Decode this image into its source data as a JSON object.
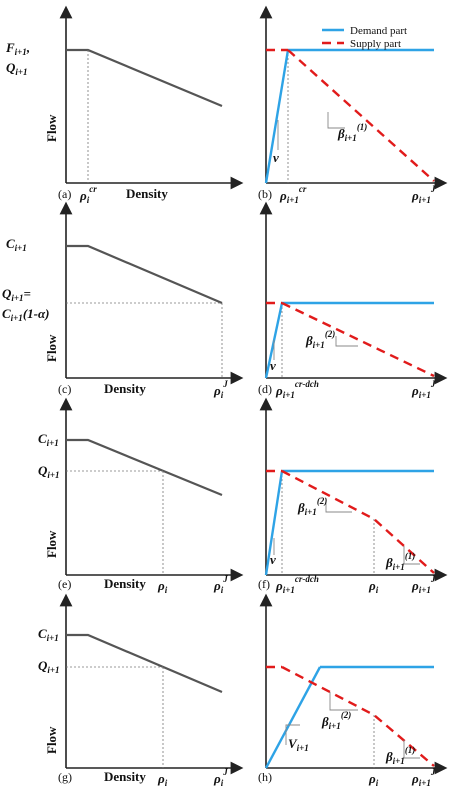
{
  "labels": {
    "flow": "Flow",
    "density": "Density",
    "legend_demand": "Demand part",
    "legend_supply": "Supply part",
    "F": "F",
    "Q": "Q",
    "C": "C",
    "rho": "ρ",
    "sub_i": "i",
    "sub_i1": "i+1",
    "comma": ",",
    "cr": "cr",
    "crdch": "cr-dch",
    "J": "J",
    "beta": "β",
    "beta_sup1": "(1)",
    "beta_sup2": "(2)",
    "nu": "v",
    "V": "V",
    "q_eq_prefix": "=",
    "q_eq_suffix": "(1-α)"
  },
  "panels": [
    "(a)",
    "(b)",
    "(c)",
    "(d)",
    "(e)",
    "(f)",
    "(g)",
    "(h)"
  ],
  "colors": {
    "demand": "#2ea3e6",
    "supply": "#e11b1b",
    "flow": "#555555",
    "axis": "#222222"
  }
}
